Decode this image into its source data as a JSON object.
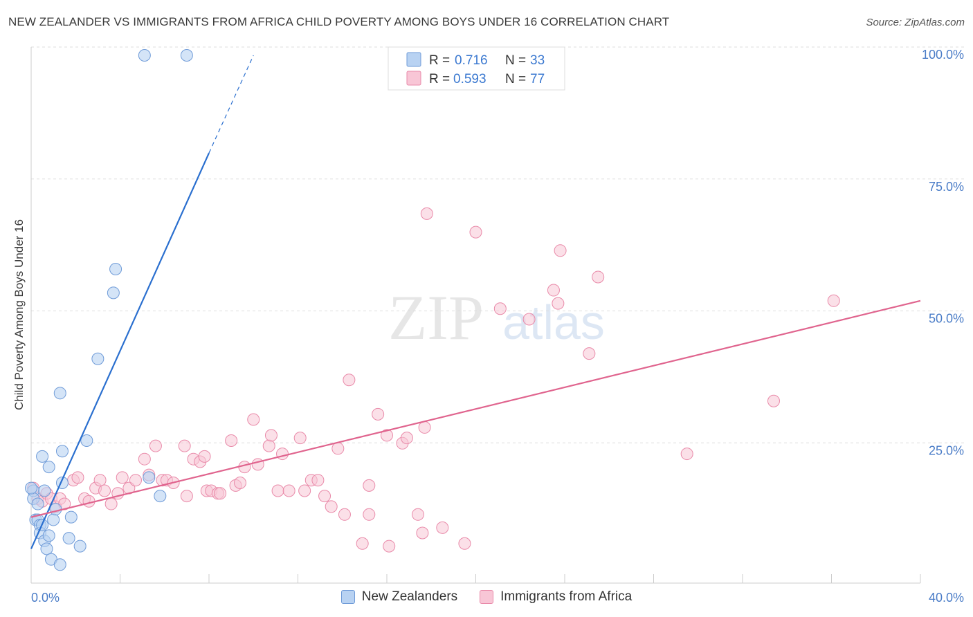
{
  "title": "NEW ZEALANDER VS IMMIGRANTS FROM AFRICA CHILD POVERTY AMONG BOYS UNDER 16 CORRELATION CHART",
  "source": "Source: ZipAtlas.com",
  "watermark": {
    "zip": "ZIP",
    "atlas": "atlas"
  },
  "legend_top": [
    {
      "r_label": "R =",
      "r_value": "0.716",
      "n_label": "N =",
      "n_value": "33"
    },
    {
      "r_label": "R =",
      "r_value": "0.593",
      "n_label": "N =",
      "n_value": "77"
    }
  ],
  "legend_bottom": [
    {
      "label": "New Zealanders"
    },
    {
      "label": "Immigrants from Africa"
    }
  ],
  "colors": {
    "blue_fill": "#b8d2f2",
    "blue_stroke": "#6f9bd8",
    "blue_line": "#2a6fcf",
    "pink_fill": "#f8c6d6",
    "pink_stroke": "#e98aa9",
    "pink_line": "#e0648e",
    "axis_text": "#4a7cc7",
    "grid": "#dddddd"
  },
  "chart_data": {
    "type": "scatter",
    "title": "NEW ZEALANDER VS IMMIGRANTS FROM AFRICA CHILD POVERTY AMONG BOYS UNDER 16 CORRELATION CHART",
    "xlabel": "",
    "ylabel": "Child Poverty Among Boys Under 16",
    "xlim": [
      0,
      40
    ],
    "ylim": [
      0,
      100
    ],
    "x_tick_labels": [
      "0.0%",
      "40.0%"
    ],
    "y_ticks": [
      25,
      50,
      75,
      100
    ],
    "y_tick_labels": [
      "25.0%",
      "50.0%",
      "75.0%",
      "100.0%"
    ],
    "series": [
      {
        "name": "New Zealanders",
        "r": 0.716,
        "n": 33,
        "trend": {
          "x0": 0.0,
          "y0": 6.5,
          "x1": 8.0,
          "y1": 81.5,
          "dash_x1": 10.0,
          "dash_y1": 100
        },
        "points": [
          [
            0.1,
            17.5
          ],
          [
            0.1,
            16
          ],
          [
            0.2,
            12
          ],
          [
            0.3,
            12
          ],
          [
            0.4,
            11
          ],
          [
            0.4,
            9.5
          ],
          [
            0.5,
            11
          ],
          [
            0.5,
            24
          ],
          [
            0.6,
            8
          ],
          [
            0.6,
            17.5
          ],
          [
            0.7,
            6.5
          ],
          [
            0.8,
            9
          ],
          [
            0.8,
            22
          ],
          [
            0.9,
            4.5
          ],
          [
            1.0,
            12
          ],
          [
            1.1,
            14
          ],
          [
            1.3,
            3.5
          ],
          [
            1.4,
            25
          ],
          [
            1.4,
            19
          ],
          [
            1.3,
            36
          ],
          [
            1.7,
            8.5
          ],
          [
            1.8,
            12.5
          ],
          [
            2.2,
            7
          ],
          [
            2.5,
            27
          ],
          [
            3.0,
            42.5
          ],
          [
            3.7,
            55
          ],
          [
            3.8,
            59.5
          ],
          [
            5.1,
            100
          ],
          [
            5.3,
            20
          ],
          [
            5.8,
            16.5
          ],
          [
            7.0,
            100
          ],
          [
            0.0,
            18
          ],
          [
            0.3,
            15
          ]
        ]
      },
      {
        "name": "Immigrants from Africa",
        "r": 0.593,
        "n": 77,
        "trend": {
          "x0": 0.0,
          "y0": 12.5,
          "x1": 40.0,
          "y1": 53.5
        },
        "points": [
          [
            0.1,
            18
          ],
          [
            0.3,
            16
          ],
          [
            0.5,
            15.5
          ],
          [
            0.7,
            17
          ],
          [
            0.9,
            16
          ],
          [
            1.1,
            14.5
          ],
          [
            1.3,
            16
          ],
          [
            1.5,
            15
          ],
          [
            1.9,
            19.5
          ],
          [
            2.1,
            20
          ],
          [
            2.4,
            16
          ],
          [
            2.6,
            15.5
          ],
          [
            2.9,
            18
          ],
          [
            3.1,
            19.5
          ],
          [
            3.3,
            17.5
          ],
          [
            3.6,
            15
          ],
          [
            3.9,
            17
          ],
          [
            4.1,
            20
          ],
          [
            4.4,
            18
          ],
          [
            4.7,
            19.5
          ],
          [
            5.1,
            23.5
          ],
          [
            5.3,
            20.5
          ],
          [
            5.6,
            26
          ],
          [
            5.9,
            19.5
          ],
          [
            6.1,
            19.5
          ],
          [
            6.4,
            19
          ],
          [
            6.9,
            26
          ],
          [
            7.0,
            16.5
          ],
          [
            7.3,
            23.5
          ],
          [
            7.6,
            23
          ],
          [
            7.8,
            24
          ],
          [
            7.9,
            17.5
          ],
          [
            8.1,
            17.5
          ],
          [
            8.4,
            17
          ],
          [
            8.5,
            17
          ],
          [
            9.0,
            27
          ],
          [
            9.2,
            18.5
          ],
          [
            9.4,
            19
          ],
          [
            9.6,
            22
          ],
          [
            10.0,
            31
          ],
          [
            10.2,
            22.5
          ],
          [
            10.7,
            26
          ],
          [
            10.8,
            28
          ],
          [
            11.1,
            17.5
          ],
          [
            11.3,
            24.5
          ],
          [
            11.6,
            17.5
          ],
          [
            12.1,
            27.5
          ],
          [
            12.3,
            17.5
          ],
          [
            12.6,
            19.5
          ],
          [
            12.9,
            19.5
          ],
          [
            13.2,
            16.5
          ],
          [
            13.5,
            14.5
          ],
          [
            13.8,
            25.5
          ],
          [
            14.1,
            13
          ],
          [
            14.3,
            38.5
          ],
          [
            14.9,
            7.5
          ],
          [
            15.2,
            13
          ],
          [
            15.6,
            32
          ],
          [
            15.2,
            18.5
          ],
          [
            16.0,
            28
          ],
          [
            16.1,
            7
          ],
          [
            16.7,
            26.5
          ],
          [
            16.9,
            27.5
          ],
          [
            17.4,
            13
          ],
          [
            17.6,
            9.5
          ],
          [
            17.8,
            70
          ],
          [
            17.7,
            29.5
          ],
          [
            18.5,
            10.5
          ],
          [
            19.5,
            7.5
          ],
          [
            20.0,
            66.5
          ],
          [
            21.1,
            52
          ],
          [
            22.4,
            50
          ],
          [
            23.5,
            55.5
          ],
          [
            23.8,
            63
          ],
          [
            23.7,
            53
          ],
          [
            25.1,
            43.5
          ],
          [
            25.5,
            58
          ]
        ],
        "extra_points": [
          [
            29.5,
            24.5
          ],
          [
            33.4,
            34.5
          ],
          [
            36.1,
            53.5
          ]
        ]
      }
    ]
  }
}
